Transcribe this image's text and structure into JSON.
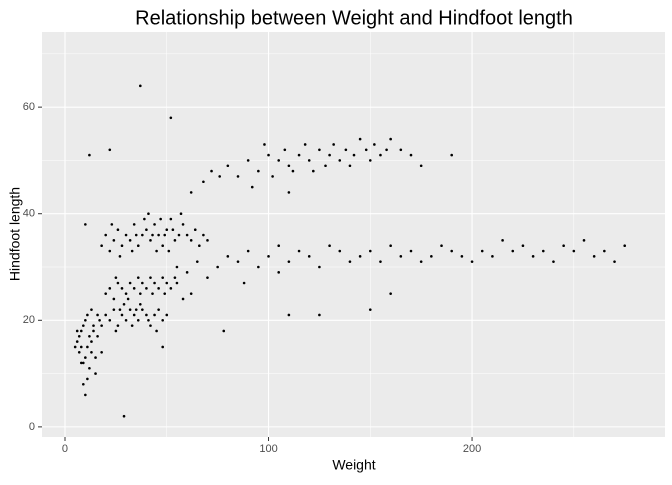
{
  "chart_data": {
    "type": "scatter",
    "title": "Relationship between Weight and Hindfoot length",
    "x_label": "Weight",
    "y_label": "Hindfoot length",
    "color": "#000000",
    "xlim": [
      -11.3,
      294.8
    ],
    "xticks": [
      0,
      100,
      200
    ],
    "ylim": [
      -1.9,
      74.1
    ],
    "yticks": [
      0,
      20,
      40,
      60
    ],
    "grid": true,
    "x": [
      6,
      7,
      8,
      9,
      10,
      11,
      12,
      13,
      14,
      15,
      7,
      8,
      9,
      10,
      11,
      12,
      13,
      14,
      16,
      17,
      5,
      6,
      9,
      10,
      15,
      18,
      11,
      8,
      13,
      16,
      18,
      20,
      22,
      24,
      26,
      28,
      30,
      32,
      34,
      36,
      38,
      40,
      42,
      44,
      46,
      48,
      25,
      29,
      33,
      37,
      41,
      45,
      50,
      27,
      35,
      20,
      22,
      24,
      26,
      28,
      30,
      32,
      34,
      36,
      38,
      40,
      42,
      44,
      46,
      48,
      50,
      52,
      54,
      25,
      31,
      37,
      43,
      49,
      55,
      58,
      18,
      20,
      22,
      24,
      26,
      28,
      30,
      32,
      34,
      36,
      38,
      40,
      42,
      44,
      46,
      48,
      50,
      52,
      54,
      56,
      58,
      60,
      62,
      64,
      66,
      68,
      70,
      23,
      27,
      33,
      39,
      45,
      51,
      57,
      41,
      47,
      35,
      43,
      49,
      53,
      55,
      60,
      65,
      70,
      75,
      80,
      85,
      90,
      95,
      100,
      105,
      110,
      115,
      120,
      125,
      130,
      135,
      140,
      145,
      150,
      155,
      160,
      165,
      170,
      175,
      180,
      185,
      190,
      195,
      200,
      205,
      210,
      215,
      220,
      225,
      230,
      235,
      240,
      245,
      250,
      255,
      260,
      265,
      270,
      275,
      62,
      78,
      88,
      110,
      125,
      150,
      160,
      105,
      62,
      68,
      72,
      76,
      80,
      85,
      90,
      95,
      100,
      102,
      105,
      108,
      110,
      112,
      115,
      118,
      120,
      122,
      125,
      128,
      130,
      132,
      135,
      138,
      140,
      142,
      145,
      148,
      150,
      152,
      155,
      158,
      160,
      165,
      170,
      175,
      190,
      92,
      98,
      110,
      37,
      29,
      52,
      12,
      22,
      10,
      48
    ],
    "values": [
      16,
      14,
      18,
      12,
      20,
      15,
      17,
      22,
      19,
      13,
      17,
      15,
      19,
      13,
      21,
      11,
      16,
      18,
      21,
      20,
      15,
      18,
      8,
      6,
      10,
      14,
      9,
      12,
      14,
      17,
      19,
      21,
      20,
      22,
      19,
      21,
      20,
      22,
      21,
      20,
      22,
      21,
      19,
      21,
      22,
      20,
      18,
      23,
      19,
      23,
      20,
      18,
      21,
      22,
      22,
      25,
      26,
      24,
      27,
      26,
      25,
      27,
      26,
      28,
      27,
      26,
      28,
      27,
      26,
      28,
      27,
      26,
      28,
      28,
      24,
      25,
      25,
      25,
      27,
      24,
      34,
      36,
      33,
      35,
      37,
      34,
      36,
      35,
      38,
      34,
      36,
      37,
      35,
      38,
      36,
      34,
      37,
      39,
      35,
      36,
      38,
      36,
      35,
      37,
      34,
      36,
      35,
      38,
      32,
      33,
      39,
      33,
      33,
      40,
      40,
      39,
      36,
      36,
      36,
      37,
      30,
      29,
      31,
      28,
      30,
      32,
      31,
      33,
      30,
      32,
      34,
      31,
      33,
      32,
      30,
      34,
      33,
      31,
      32,
      33,
      31,
      34,
      32,
      33,
      31,
      32,
      34,
      33,
      32,
      31,
      33,
      32,
      35,
      33,
      34,
      32,
      33,
      31,
      34,
      33,
      35,
      32,
      33,
      31,
      34,
      25,
      18,
      27,
      21,
      21,
      22,
      25,
      29,
      44,
      46,
      48,
      47,
      49,
      47,
      50,
      48,
      51,
      47,
      50,
      52,
      49,
      48,
      51,
      53,
      50,
      48,
      52,
      49,
      51,
      53,
      50,
      52,
      49,
      51,
      54,
      52,
      50,
      53,
      51,
      52,
      54,
      52,
      51,
      49,
      51,
      45,
      53,
      44,
      64,
      2,
      58,
      51,
      52,
      38,
      15
    ]
  }
}
